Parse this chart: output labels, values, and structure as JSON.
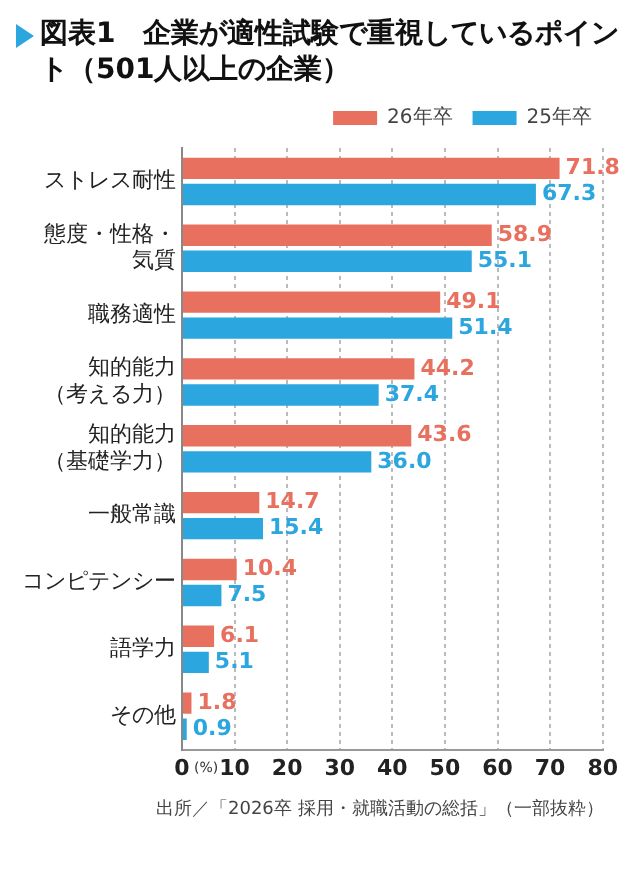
{
  "chart_data": {
    "type": "bar",
    "orientation": "horizontal",
    "title": "図表1　企業が適性試験で重視しているポイント（501人以上の企業）",
    "categories": [
      "ストレス耐性",
      "態度・性格・気質",
      "職務適性",
      "知的能力（考える力）",
      "知的能力（基礎学力）",
      "一般常識",
      "コンピテンシー",
      "語学力",
      "その他"
    ],
    "series": [
      {
        "name": "26年卒",
        "color": "#e8705e",
        "values": [
          71.8,
          58.9,
          49.1,
          44.2,
          43.6,
          14.7,
          10.4,
          6.1,
          1.8
        ],
        "value_labels": [
          "71.8",
          "58.9",
          "49.1",
          "44.2",
          "43.6",
          "14.7",
          "10.4",
          "6.1",
          "1.8"
        ]
      },
      {
        "name": "25年卒",
        "color": "#2ba6de",
        "values": [
          67.3,
          55.1,
          51.4,
          37.4,
          36.0,
          15.4,
          7.5,
          5.1,
          0.9
        ],
        "value_labels": [
          "67.3",
          "55.1",
          "51.4",
          "37.4",
          "36.0",
          "15.4",
          "7.5",
          "5.1",
          "0.9"
        ]
      }
    ],
    "xlabel": "(%)",
    "xlim": [
      0,
      80
    ],
    "xticks": [
      0,
      10,
      20,
      30,
      40,
      50,
      60,
      70,
      80
    ],
    "grid": "x",
    "legend": "top right",
    "annotations": [
      "出所／「2026卒 採用・就職活動の総括」（一部抜粋）"
    ]
  }
}
